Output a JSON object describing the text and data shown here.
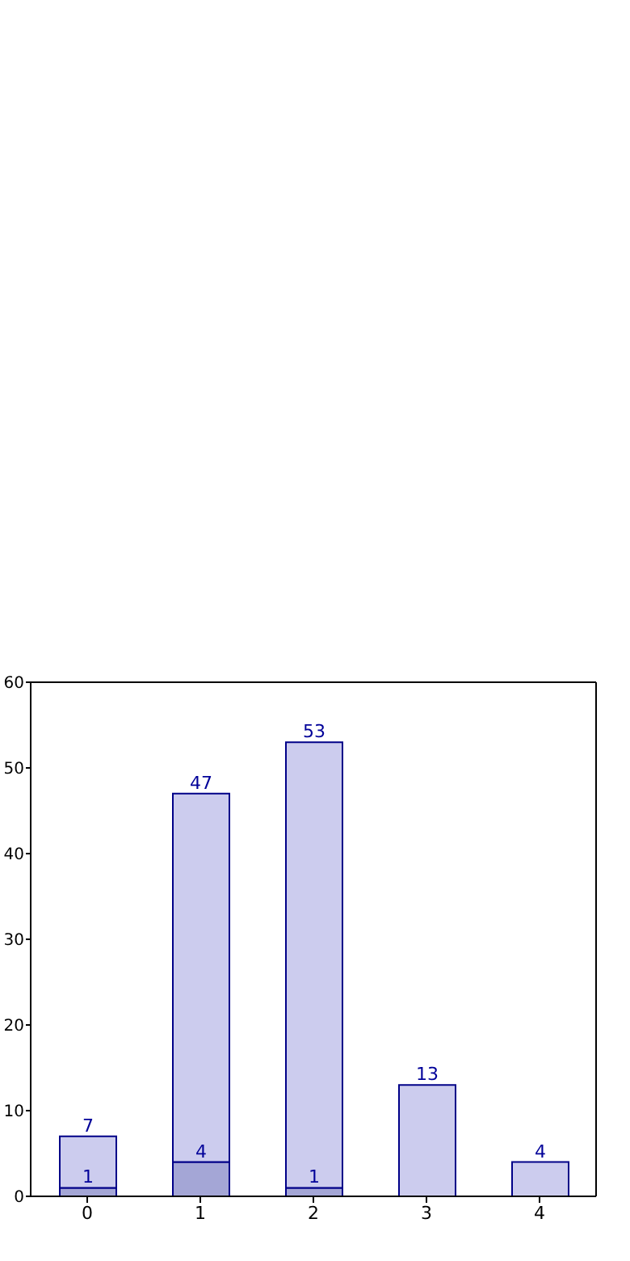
{
  "chart_data": {
    "type": "bar",
    "categories": [
      "0",
      "1",
      "2",
      "3",
      "4"
    ],
    "stacked": true,
    "series": [
      {
        "color": "#a4a6d6",
        "values": [
          1,
          4,
          1,
          null,
          null
        ],
        "value_labels": [
          "1",
          "4",
          "1",
          null,
          null
        ]
      },
      {
        "color": "#ccccee",
        "values": [
          6,
          43,
          52,
          13,
          4
        ]
      }
    ],
    "totals": [
      "7",
      "47",
      "53",
      "13",
      "4"
    ],
    "ylim": [
      0,
      60
    ],
    "yticks": [
      0,
      10,
      20,
      30,
      40,
      50,
      60
    ],
    "grid": false
  }
}
